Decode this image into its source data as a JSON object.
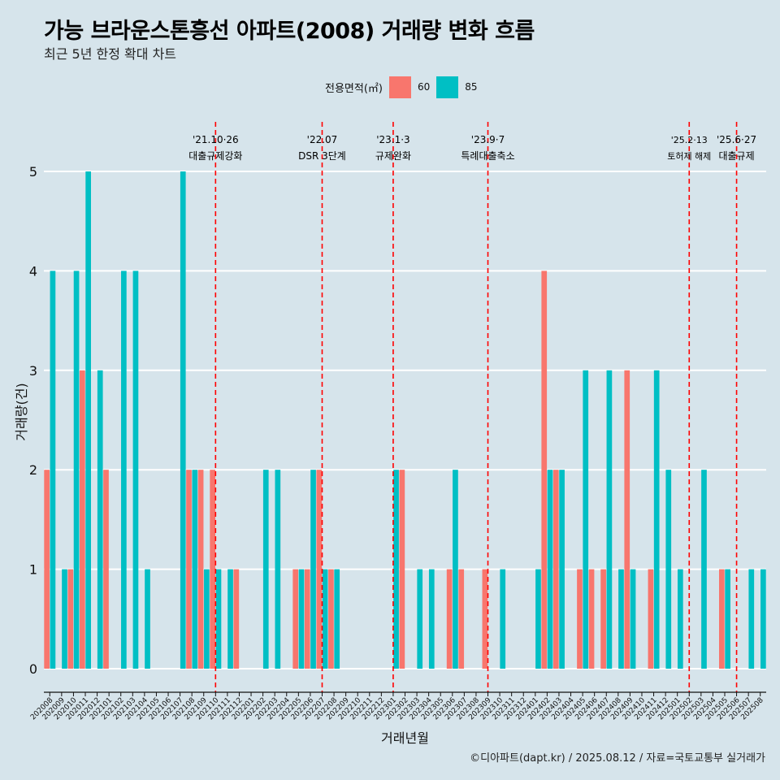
{
  "title": "가능 브라운스톤흥선 아파트(2008) 거래량 변화 흐름",
  "subtitle": "최근 5년 한정 확대 차트",
  "caption": "©디아파트(dapt.kr) / 2025.08.12 / 자료=국토교통부 실거래가",
  "legend": {
    "title": "전용면적(㎡)",
    "items": [
      {
        "label": "60",
        "color": "#f8766d"
      },
      {
        "label": "85",
        "color": "#00bfc4"
      }
    ]
  },
  "chart_data": {
    "type": "bar",
    "xlabel": "거래년월",
    "ylabel": "거래량(건)",
    "ylim": [
      0,
      5
    ],
    "yticks": [
      0,
      1,
      2,
      3,
      4,
      5
    ],
    "grid": true,
    "legend_position": "top",
    "categories": [
      "202008",
      "202009",
      "202010",
      "202011",
      "202012",
      "202101",
      "202102",
      "202103",
      "202104",
      "202105",
      "202106",
      "202107",
      "202108",
      "202109",
      "202110",
      "202111",
      "202112",
      "202201",
      "202202",
      "202203",
      "202204",
      "202205",
      "202206",
      "202207",
      "202208",
      "202209",
      "202210",
      "202211",
      "202212",
      "202301",
      "202302",
      "202303",
      "202304",
      "202305",
      "202306",
      "202307",
      "202308",
      "202309",
      "202310",
      "202311",
      "202312",
      "202401",
      "202402",
      "202403",
      "202404",
      "202405",
      "202406",
      "202407",
      "202408",
      "202409",
      "202410",
      "202411",
      "202412",
      "202501",
      "202502",
      "202503",
      "202504",
      "202505",
      "202506",
      "202507",
      "202508"
    ],
    "series": [
      {
        "name": "60",
        "color": "#f8766d",
        "values": [
          2,
          0,
          1,
          3,
          0,
          2,
          0,
          0,
          0,
          0,
          0,
          0,
          2,
          2,
          2,
          0,
          1,
          0,
          0,
          0,
          0,
          1,
          1,
          2,
          1,
          0,
          0,
          0,
          0,
          0,
          2,
          0,
          0,
          0,
          1,
          1,
          0,
          1,
          0,
          0,
          0,
          0,
          4,
          2,
          0,
          1,
          1,
          1,
          0,
          3,
          0,
          1,
          0,
          0,
          0,
          0,
          0,
          1,
          0,
          0,
          0
        ]
      },
      {
        "name": "85",
        "color": "#00bfc4",
        "values": [
          4,
          1,
          4,
          5,
          3,
          0,
          4,
          4,
          1,
          0,
          0,
          5,
          2,
          1,
          1,
          1,
          0,
          0,
          2,
          2,
          0,
          1,
          2,
          1,
          1,
          0,
          0,
          0,
          0,
          2,
          0,
          1,
          1,
          0,
          2,
          0,
          0,
          0,
          1,
          0,
          0,
          1,
          2,
          2,
          0,
          3,
          0,
          3,
          1,
          1,
          0,
          3,
          2,
          1,
          0,
          2,
          0,
          1,
          0,
          1,
          1
        ]
      }
    ],
    "annotations": [
      {
        "category": "202110",
        "date": "'21.10·26",
        "text": "대출규제강화"
      },
      {
        "category": "202207",
        "date": "'22.07",
        "text": "DSR 3단계"
      },
      {
        "category": "202301",
        "date": "'23.1·3",
        "text": "규제완화"
      },
      {
        "category": "202309",
        "date": "'23.9·7",
        "text": "특례대출축소"
      },
      {
        "category": "202502",
        "date": "'25.2·13",
        "text": "토허제 해제"
      },
      {
        "category": "202506",
        "date": "'25.6·27",
        "text": "대출규제"
      }
    ]
  }
}
